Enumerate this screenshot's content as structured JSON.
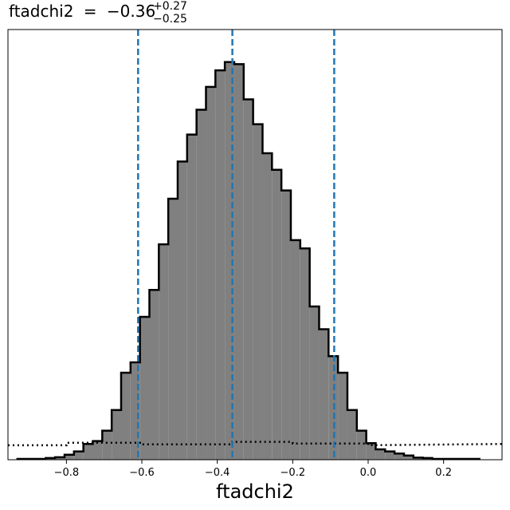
{
  "chart_data": {
    "type": "histogram",
    "title": {
      "parameter": "ftadchi2",
      "equals": "=",
      "median": "−0.36",
      "upper": "+0.27",
      "lower": "−0.25"
    },
    "xlabel": "ftadchi2",
    "xlim": [
      -0.955,
      0.355
    ],
    "ylim": [
      0,
      1.0
    ],
    "x_ticks": [
      {
        "value": -0.8,
        "label": "−0.8"
      },
      {
        "value": -0.6,
        "label": "−0.6"
      },
      {
        "value": -0.4,
        "label": "−0.4"
      },
      {
        "value": -0.2,
        "label": "−0.2"
      },
      {
        "value": 0.0,
        "label": "0.0"
      },
      {
        "value": 0.2,
        "label": "0.2"
      }
    ],
    "histogram": {
      "fill_color": "#808080",
      "edge_color": "#000000",
      "bin_edges": [
        -0.93,
        -0.905,
        -0.88,
        -0.855,
        -0.83,
        -0.805,
        -0.78,
        -0.755,
        -0.73,
        -0.705,
        -0.68,
        -0.655,
        -0.63,
        -0.605,
        -0.58,
        -0.555,
        -0.53,
        -0.505,
        -0.48,
        -0.455,
        -0.43,
        -0.405,
        -0.38,
        -0.355,
        -0.33,
        -0.305,
        -0.28,
        -0.255,
        -0.23,
        -0.205,
        -0.18,
        -0.155,
        -0.13,
        -0.105,
        -0.08,
        -0.055,
        -0.03,
        -0.005,
        0.02,
        0.045,
        0.07,
        0.095,
        0.12,
        0.145,
        0.17,
        0.195,
        0.22,
        0.245,
        0.27,
        0.295
      ],
      "counts": [
        0.002,
        0.002,
        0.002,
        0.004,
        0.006,
        0.012,
        0.02,
        0.038,
        0.045,
        0.07,
        0.12,
        0.21,
        0.235,
        0.345,
        0.41,
        0.52,
        0.63,
        0.72,
        0.785,
        0.845,
        0.9,
        0.94,
        0.96,
        0.955,
        0.87,
        0.81,
        0.74,
        0.7,
        0.65,
        0.53,
        0.51,
        0.37,
        0.315,
        0.25,
        0.21,
        0.12,
        0.07,
        0.04,
        0.025,
        0.02,
        0.015,
        0.01,
        0.005,
        0.004,
        0.002,
        0.002,
        0.002,
        0.002,
        0.002
      ]
    },
    "prior": {
      "style": "dotted",
      "color": "#000000",
      "x": [
        -0.955,
        -0.8,
        -0.8,
        -0.6,
        -0.6,
        -0.36,
        -0.36,
        -0.2,
        -0.2,
        0.0,
        0.0,
        0.355
      ],
      "y": [
        0.035,
        0.035,
        0.041,
        0.041,
        0.037,
        0.037,
        0.043,
        0.043,
        0.039,
        0.039,
        0.035,
        0.038
      ]
    },
    "vlines": {
      "color": "#1f77b4",
      "style": "dashed",
      "values": [
        -0.61,
        -0.36,
        -0.09
      ]
    }
  }
}
